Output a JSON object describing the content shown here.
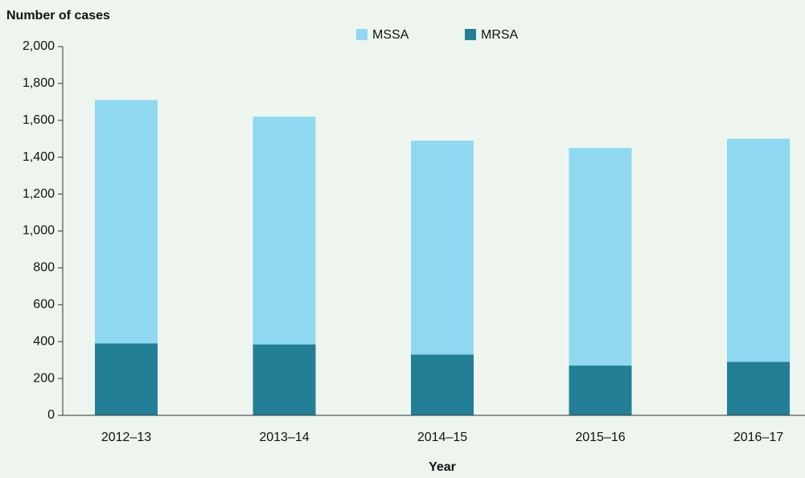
{
  "chart_data": {
    "type": "stacked_bar",
    "y_axis_label": "Number of cases",
    "x_axis_label": "Year",
    "categories": [
      "2012–13",
      "2013–14",
      "2014–15",
      "2015–16",
      "2016–17"
    ],
    "series": [
      {
        "name": "MRSA",
        "color": "#237f96",
        "values": [
          390,
          385,
          330,
          270,
          290
        ]
      },
      {
        "name": "MSSA",
        "color": "#8fd8f0",
        "values": [
          1320,
          1235,
          1160,
          1180,
          1210
        ]
      }
    ],
    "ylim": [
      0,
      2000
    ],
    "yticks": [
      0,
      200,
      400,
      600,
      800,
      {
        "value": 1000,
        "label": "1,000"
      },
      {
        "value": 1200,
        "label": "1,200"
      },
      {
        "value": 1400,
        "label": "1,400"
      },
      {
        "value": 1600,
        "label": "1,600"
      },
      {
        "value": 1800,
        "label": "1,800"
      },
      {
        "value": 2000,
        "label": "2,000"
      }
    ]
  }
}
